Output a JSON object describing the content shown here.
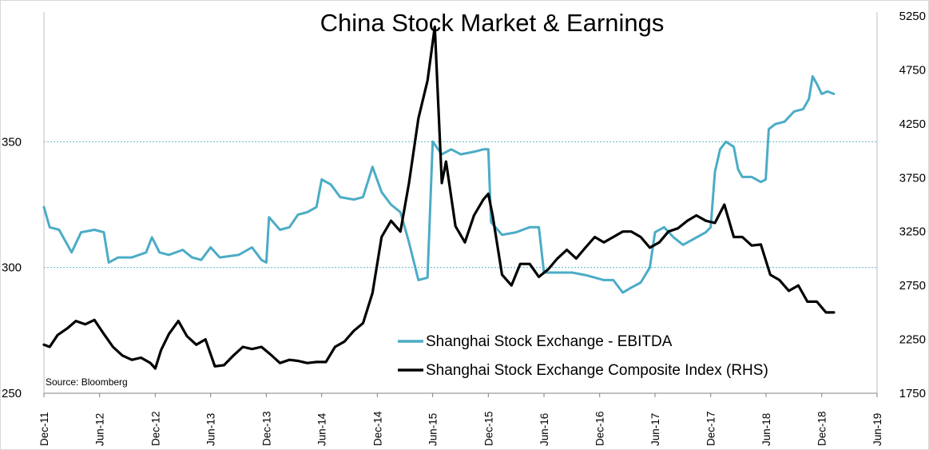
{
  "chart_data": {
    "type": "line",
    "title": "China Stock Market & Earnings",
    "source": "Source: Bloomberg",
    "x_ticks": [
      "Dec-11",
      "Jun-12",
      "Dec-12",
      "Jun-13",
      "Dec-13",
      "Jun-14",
      "Dec-14",
      "Jun-15",
      "Dec-15",
      "Jun-16",
      "Dec-16",
      "Jun-17",
      "Dec-17",
      "Jun-18",
      "Dec-18",
      "Jun-19"
    ],
    "x_range": [
      "2011-12-01",
      "2019-06-01"
    ],
    "y_left": {
      "ticks": [
        250,
        300,
        350
      ],
      "range": [
        250,
        400
      ]
    },
    "y_right": {
      "ticks": [
        1750,
        2250,
        2750,
        3250,
        3750,
        4250,
        4750,
        5250
      ],
      "range": [
        1750,
        5250
      ]
    },
    "gridlines_left": [
      300,
      350
    ],
    "legend_position": "bottom-right",
    "series": [
      {
        "name": "Shanghai Stock Exchange - EBITDA",
        "axis": "left",
        "color": "#4bacc6",
        "points": [
          [
            "2011-12-01",
            324
          ],
          [
            "2011-12-20",
            316
          ],
          [
            "2012-01-20",
            315
          ],
          [
            "2012-03-01",
            306
          ],
          [
            "2012-04-01",
            314
          ],
          [
            "2012-05-15",
            315
          ],
          [
            "2012-06-15",
            314
          ],
          [
            "2012-07-01",
            302
          ],
          [
            "2012-08-01",
            304
          ],
          [
            "2012-09-15",
            304
          ],
          [
            "2012-11-01",
            306
          ],
          [
            "2012-11-20",
            312
          ],
          [
            "2012-12-15",
            306
          ],
          [
            "2013-01-15",
            305
          ],
          [
            "2013-03-01",
            307
          ],
          [
            "2013-04-01",
            304
          ],
          [
            "2013-05-01",
            303
          ],
          [
            "2013-06-01",
            308
          ],
          [
            "2013-07-01",
            304
          ],
          [
            "2013-09-01",
            305
          ],
          [
            "2013-10-15",
            308
          ],
          [
            "2013-11-15",
            303
          ],
          [
            "2013-12-01",
            302
          ],
          [
            "2013-12-10",
            320
          ],
          [
            "2014-01-15",
            315
          ],
          [
            "2014-02-15",
            316
          ],
          [
            "2014-03-15",
            321
          ],
          [
            "2014-04-15",
            322
          ],
          [
            "2014-05-15",
            324
          ],
          [
            "2014-06-01",
            335
          ],
          [
            "2014-07-01",
            333
          ],
          [
            "2014-08-01",
            328
          ],
          [
            "2014-09-15",
            327
          ],
          [
            "2014-10-15",
            328
          ],
          [
            "2014-11-15",
            340
          ],
          [
            "2014-12-15",
            330
          ],
          [
            "2015-01-15",
            325
          ],
          [
            "2015-02-15",
            322
          ],
          [
            "2015-03-15",
            310
          ],
          [
            "2015-04-15",
            295
          ],
          [
            "2015-05-15",
            296
          ],
          [
            "2015-06-01",
            350
          ],
          [
            "2015-07-01",
            345
          ],
          [
            "2015-08-01",
            347
          ],
          [
            "2015-09-01",
            345
          ],
          [
            "2015-10-15",
            346
          ],
          [
            "2015-11-15",
            347
          ],
          [
            "2015-12-01",
            347
          ],
          [
            "2015-12-10",
            318
          ],
          [
            "2016-01-15",
            313
          ],
          [
            "2016-03-01",
            314
          ],
          [
            "2016-04-15",
            316
          ],
          [
            "2016-05-15",
            316
          ],
          [
            "2016-06-01",
            298
          ],
          [
            "2016-07-15",
            298
          ],
          [
            "2016-09-01",
            298
          ],
          [
            "2016-10-15",
            297
          ],
          [
            "2016-11-15",
            296
          ],
          [
            "2016-12-15",
            295
          ],
          [
            "2017-01-15",
            295
          ],
          [
            "2017-02-15",
            290
          ],
          [
            "2017-03-15",
            292
          ],
          [
            "2017-04-15",
            294
          ],
          [
            "2017-05-15",
            300
          ],
          [
            "2017-06-01",
            314
          ],
          [
            "2017-07-01",
            316
          ],
          [
            "2017-08-01",
            312
          ],
          [
            "2017-09-01",
            309
          ],
          [
            "2017-10-01",
            311
          ],
          [
            "2017-11-15",
            314
          ],
          [
            "2017-12-01",
            316
          ],
          [
            "2017-12-15",
            338
          ],
          [
            "2018-01-01",
            347
          ],
          [
            "2018-01-20",
            350
          ],
          [
            "2018-02-15",
            348
          ],
          [
            "2018-03-01",
            339
          ],
          [
            "2018-03-15",
            336
          ],
          [
            "2018-04-15",
            336
          ],
          [
            "2018-05-15",
            334
          ],
          [
            "2018-05-31",
            335
          ],
          [
            "2018-06-10",
            355
          ],
          [
            "2018-07-01",
            357
          ],
          [
            "2018-08-01",
            358
          ],
          [
            "2018-09-01",
            362
          ],
          [
            "2018-10-01",
            363
          ],
          [
            "2018-10-20",
            367
          ],
          [
            "2018-11-01",
            376
          ],
          [
            "2018-11-15",
            373
          ],
          [
            "2018-12-01",
            369
          ],
          [
            "2018-12-20",
            370
          ],
          [
            "2019-01-10",
            369
          ]
        ]
      },
      {
        "name": "Shanghai Stock Exchange Composite Index (RHS)",
        "axis": "right",
        "color": "#000000",
        "points": [
          [
            "2011-12-01",
            2200
          ],
          [
            "2011-12-20",
            2180
          ],
          [
            "2012-01-15",
            2290
          ],
          [
            "2012-02-15",
            2350
          ],
          [
            "2012-03-15",
            2420
          ],
          [
            "2012-04-15",
            2390
          ],
          [
            "2012-05-15",
            2430
          ],
          [
            "2012-06-15",
            2300
          ],
          [
            "2012-07-15",
            2180
          ],
          [
            "2012-08-15",
            2100
          ],
          [
            "2012-09-15",
            2060
          ],
          [
            "2012-10-15",
            2080
          ],
          [
            "2012-11-15",
            2030
          ],
          [
            "2012-12-01",
            1980
          ],
          [
            "2012-12-20",
            2150
          ],
          [
            "2013-01-15",
            2300
          ],
          [
            "2013-02-15",
            2420
          ],
          [
            "2013-03-15",
            2280
          ],
          [
            "2013-04-15",
            2200
          ],
          [
            "2013-05-15",
            2250
          ],
          [
            "2013-06-15",
            2000
          ],
          [
            "2013-07-15",
            2010
          ],
          [
            "2013-08-15",
            2100
          ],
          [
            "2013-09-15",
            2180
          ],
          [
            "2013-10-15",
            2160
          ],
          [
            "2013-11-15",
            2180
          ],
          [
            "2013-12-15",
            2110
          ],
          [
            "2014-01-15",
            2030
          ],
          [
            "2014-02-15",
            2060
          ],
          [
            "2014-03-15",
            2050
          ],
          [
            "2014-04-15",
            2030
          ],
          [
            "2014-05-15",
            2040
          ],
          [
            "2014-06-15",
            2040
          ],
          [
            "2014-07-15",
            2180
          ],
          [
            "2014-08-15",
            2230
          ],
          [
            "2014-09-15",
            2330
          ],
          [
            "2014-10-15",
            2400
          ],
          [
            "2014-11-15",
            2680
          ],
          [
            "2014-12-15",
            3200
          ],
          [
            "2015-01-15",
            3350
          ],
          [
            "2015-02-15",
            3250
          ],
          [
            "2015-03-15",
            3700
          ],
          [
            "2015-04-15",
            4300
          ],
          [
            "2015-05-15",
            4650
          ],
          [
            "2015-06-08",
            5150
          ],
          [
            "2015-07-01",
            3700
          ],
          [
            "2015-07-15",
            3900
          ],
          [
            "2015-08-15",
            3300
          ],
          [
            "2015-09-15",
            3150
          ],
          [
            "2015-10-15",
            3400
          ],
          [
            "2015-11-15",
            3550
          ],
          [
            "2015-12-01",
            3600
          ],
          [
            "2015-12-15",
            3400
          ],
          [
            "2016-01-15",
            2850
          ],
          [
            "2016-02-15",
            2750
          ],
          [
            "2016-03-15",
            2950
          ],
          [
            "2016-04-15",
            2950
          ],
          [
            "2016-05-15",
            2830
          ],
          [
            "2016-06-15",
            2900
          ],
          [
            "2016-07-15",
            3000
          ],
          [
            "2016-08-15",
            3080
          ],
          [
            "2016-09-15",
            3000
          ],
          [
            "2016-10-15",
            3100
          ],
          [
            "2016-11-15",
            3200
          ],
          [
            "2016-12-15",
            3150
          ],
          [
            "2017-01-15",
            3200
          ],
          [
            "2017-02-15",
            3250
          ],
          [
            "2017-03-15",
            3250
          ],
          [
            "2017-04-15",
            3200
          ],
          [
            "2017-05-15",
            3100
          ],
          [
            "2017-06-15",
            3150
          ],
          [
            "2017-07-15",
            3250
          ],
          [
            "2017-08-15",
            3280
          ],
          [
            "2017-09-15",
            3350
          ],
          [
            "2017-10-15",
            3400
          ],
          [
            "2017-11-15",
            3350
          ],
          [
            "2017-12-15",
            3330
          ],
          [
            "2018-01-15",
            3500
          ],
          [
            "2018-02-15",
            3200
          ],
          [
            "2018-03-15",
            3200
          ],
          [
            "2018-04-15",
            3120
          ],
          [
            "2018-05-15",
            3130
          ],
          [
            "2018-06-15",
            2850
          ],
          [
            "2018-07-15",
            2800
          ],
          [
            "2018-08-15",
            2700
          ],
          [
            "2018-09-15",
            2750
          ],
          [
            "2018-10-15",
            2600
          ],
          [
            "2018-11-15",
            2600
          ],
          [
            "2018-12-15",
            2500
          ],
          [
            "2019-01-10",
            2500
          ]
        ]
      }
    ]
  }
}
